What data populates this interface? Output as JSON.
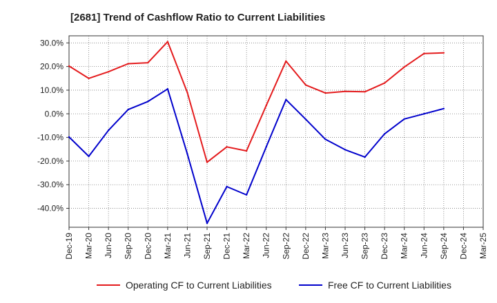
{
  "chart_data": {
    "type": "line",
    "title": "[2681]  Trend of Cashflow Ratio to Current Liabilities",
    "xlabel": "",
    "ylabel": "",
    "categories": [
      "Dec-19",
      "Mar-20",
      "Jun-20",
      "Sep-20",
      "Dec-20",
      "Mar-21",
      "Jun-21",
      "Sep-21",
      "Dec-21",
      "Mar-22",
      "Jun-22",
      "Sep-22",
      "Dec-22",
      "Mar-23",
      "Jun-23",
      "Sep-23",
      "Dec-23",
      "Mar-24",
      "Jun-24",
      "Sep-24",
      "Dec-24",
      "Mar-25"
    ],
    "ylim": [
      -48,
      33
    ],
    "yticks": [
      30,
      20,
      10,
      0,
      -10,
      -20,
      -30,
      -40
    ],
    "ytick_labels": [
      "30.0%",
      "20.0%",
      "10.0%",
      "0.0%",
      "-10.0%",
      "-20.0%",
      "-30.0%",
      "-40.0%"
    ],
    "grid": true,
    "legend_position": "bottom",
    "series": [
      {
        "name": "Operating CF to Current Liabilities",
        "color": "#e41a1c",
        "values": [
          20.2,
          15.0,
          17.8,
          21.2,
          21.6,
          30.5,
          9.0,
          -20.5,
          -14.0,
          -15.7,
          3.5,
          22.3,
          12.2,
          8.8,
          9.5,
          9.3,
          13.0,
          19.8,
          25.5,
          25.8,
          null,
          null
        ]
      },
      {
        "name": "Free CF to Current Liabilities",
        "color": "#0000cc",
        "values": [
          -9.8,
          -18.0,
          -7.0,
          1.8,
          5.2,
          10.5,
          -17.0,
          -46.3,
          -30.8,
          -34.3,
          -14.0,
          6.0,
          -2.3,
          -10.8,
          -15.2,
          -18.3,
          -8.5,
          -2.2,
          0.0,
          2.2,
          null,
          null
        ]
      }
    ]
  }
}
